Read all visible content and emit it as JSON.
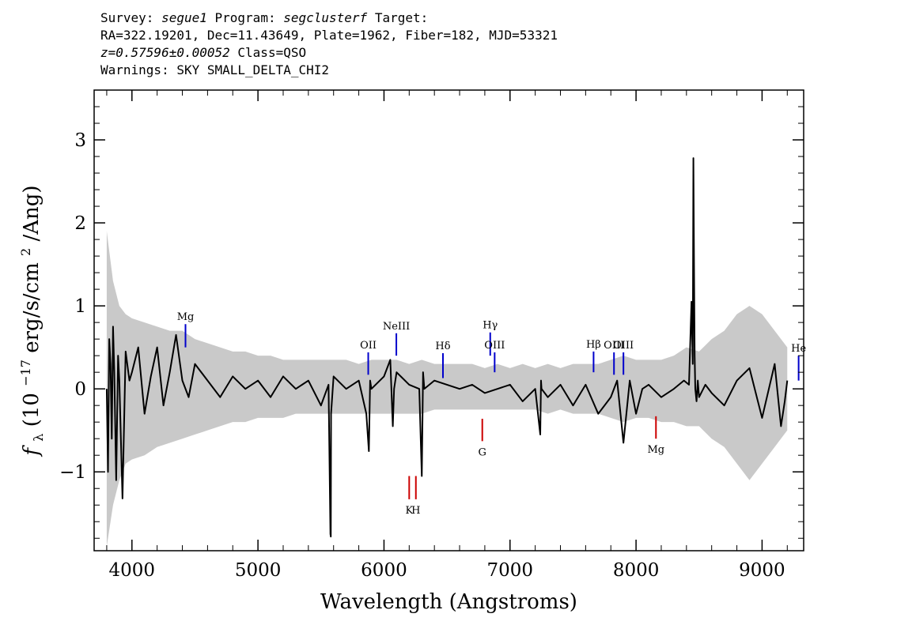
{
  "header": {
    "line1": {
      "survey_label": "Survey:",
      "survey": "segue1",
      "program_label": "Program:",
      "program": "segclusterf",
      "target_label": "Target:"
    },
    "line2": "RA=322.19201, Dec=11.43649, Plate=1962, Fiber=182, MJD=53321",
    "line3": {
      "redshift": "z=0.57596±0.00052",
      "class": "Class=QSO"
    },
    "line4": "Warnings: SKY SMALL_DELTA_CHI2"
  },
  "chart_data": {
    "type": "line",
    "xlabel": "Wavelength (Angstroms)",
    "ylabel": {
      "symbol": "f",
      "subscript": "λ",
      "prefix": " (10",
      "exponent": "−17",
      "middle": " erg/s/cm",
      "exponent2": "2",
      "suffix": "/Ang)"
    },
    "xlim": [
      3700,
      9330
    ],
    "ylim": [
      -1.95,
      3.6
    ],
    "x_ticks": [
      4000,
      5000,
      6000,
      7000,
      8000,
      9000
    ],
    "x_tick_labels": [
      "4000",
      "5000",
      "6000",
      "7000",
      "8000",
      "9000"
    ],
    "y_ticks": [
      -1,
      0,
      1,
      2,
      3
    ],
    "y_tick_labels": [
      "−1",
      "0",
      "1",
      "2",
      "3"
    ],
    "series": [
      {
        "role": "flux",
        "color": "#000000",
        "x": [
          3800,
          3810,
          3820,
          3830,
          3840,
          3850,
          3860,
          3875,
          3890,
          3900,
          3925,
          3950,
          3980,
          4000,
          4050,
          4100,
          4150,
          4200,
          4250,
          4300,
          4350,
          4400,
          4450,
          4500,
          4600,
          4700,
          4800,
          4900,
          5000,
          5100,
          5200,
          5300,
          5400,
          5500,
          5560,
          5575,
          5578,
          5580,
          5600,
          5700,
          5800,
          5860,
          5880,
          5890,
          5900,
          6000,
          6050,
          6070,
          6080,
          6100,
          6200,
          6280,
          6300,
          6310,
          6320,
          6400,
          6500,
          6600,
          6700,
          6800,
          6900,
          7000,
          7100,
          7200,
          7240,
          7246,
          7250,
          7300,
          7400,
          7500,
          7600,
          7700,
          7800,
          7850,
          7900,
          7950,
          8000,
          8050,
          8100,
          8200,
          8300,
          8380,
          8420,
          8440,
          8450,
          8455,
          8460,
          8465,
          8470,
          8480,
          8490,
          8500,
          8550,
          8600,
          8700,
          8800,
          8900,
          9000,
          9100,
          9150,
          9180,
          9200
        ],
        "y": [
          0.0,
          -1.0,
          0.6,
          0.3,
          -0.6,
          0.75,
          0.2,
          -1.1,
          0.4,
          0.1,
          -1.32,
          0.45,
          0.1,
          0.2,
          0.5,
          -0.3,
          0.15,
          0.5,
          -0.2,
          0.2,
          0.65,
          0.1,
          -0.1,
          0.3,
          0.1,
          -0.1,
          0.15,
          0.0,
          0.1,
          -0.1,
          0.15,
          0.0,
          0.1,
          -0.2,
          0.05,
          -1.75,
          -1.78,
          -0.3,
          0.15,
          0.0,
          0.1,
          -0.3,
          -0.75,
          0.1,
          0.0,
          0.15,
          0.35,
          -0.45,
          0.0,
          0.2,
          0.05,
          0.0,
          -1.05,
          0.2,
          0.0,
          0.1,
          0.05,
          0.0,
          0.05,
          -0.05,
          0.0,
          0.05,
          -0.15,
          0.0,
          -0.55,
          0.1,
          0.0,
          -0.1,
          0.05,
          -0.2,
          0.05,
          -0.3,
          -0.1,
          0.1,
          -0.65,
          0.1,
          -0.3,
          0.0,
          0.05,
          -0.1,
          0.0,
          0.1,
          0.05,
          1.05,
          0.3,
          2.78,
          1.5,
          0.4,
          0.0,
          -0.15,
          0.1,
          -0.1,
          0.05,
          -0.05,
          -0.2,
          0.1,
          0.25,
          -0.35,
          0.3,
          -0.45,
          -0.15,
          0.1
        ]
      },
      {
        "role": "flux_error_band",
        "color": "#bfbfbf",
        "x": [
          3800,
          3850,
          3900,
          3950,
          4000,
          4100,
          4200,
          4300,
          4400,
          4500,
          4600,
          4700,
          4800,
          4900,
          5000,
          5100,
          5200,
          5300,
          5400,
          5500,
          5600,
          5700,
          5800,
          5900,
          6000,
          6100,
          6200,
          6300,
          6400,
          6500,
          6600,
          6700,
          6800,
          6900,
          7000,
          7100,
          7200,
          7300,
          7400,
          7500,
          7600,
          7700,
          7800,
          7900,
          8000,
          8100,
          8200,
          8300,
          8400,
          8500,
          8600,
          8700,
          8800,
          8900,
          9000,
          9100,
          9200
        ],
        "upper": [
          1.9,
          1.3,
          1.0,
          0.9,
          0.85,
          0.8,
          0.75,
          0.7,
          0.7,
          0.6,
          0.55,
          0.5,
          0.45,
          0.45,
          0.4,
          0.4,
          0.35,
          0.35,
          0.35,
          0.35,
          0.35,
          0.35,
          0.3,
          0.35,
          0.35,
          0.35,
          0.3,
          0.35,
          0.3,
          0.3,
          0.3,
          0.3,
          0.25,
          0.3,
          0.25,
          0.3,
          0.25,
          0.3,
          0.25,
          0.3,
          0.3,
          0.3,
          0.35,
          0.4,
          0.35,
          0.35,
          0.35,
          0.4,
          0.5,
          0.45,
          0.6,
          0.7,
          0.9,
          1.0,
          0.9,
          0.7,
          0.5
        ],
        "lower": [
          -1.9,
          -1.4,
          -1.1,
          -0.9,
          -0.85,
          -0.8,
          -0.7,
          -0.65,
          -0.6,
          -0.55,
          -0.5,
          -0.45,
          -0.4,
          -0.4,
          -0.35,
          -0.35,
          -0.35,
          -0.3,
          -0.3,
          -0.3,
          -0.3,
          -0.3,
          -0.3,
          -0.3,
          -0.3,
          -0.3,
          -0.3,
          -0.3,
          -0.25,
          -0.25,
          -0.25,
          -0.25,
          -0.25,
          -0.25,
          -0.25,
          -0.25,
          -0.25,
          -0.3,
          -0.25,
          -0.3,
          -0.3,
          -0.3,
          -0.35,
          -0.4,
          -0.35,
          -0.35,
          -0.4,
          -0.4,
          -0.45,
          -0.45,
          -0.6,
          -0.7,
          -0.9,
          -1.1,
          -0.9,
          -0.7,
          -0.5
        ]
      }
    ],
    "emission_lines": [
      {
        "label": "Mg",
        "x": 4425,
        "y0": 0.5,
        "y1": 0.78,
        "color": "#0000cc"
      },
      {
        "label": "OII",
        "x": 5875,
        "y0": 0.17,
        "y1": 0.44,
        "color": "#0000cc"
      },
      {
        "label": "NeIII",
        "x": 6098,
        "y0": 0.4,
        "y1": 0.67,
        "color": "#0000cc"
      },
      {
        "label": "Hδ",
        "x": 6468,
        "y0": 0.13,
        "y1": 0.43,
        "color": "#0000cc"
      },
      {
        "label": "Hγ",
        "x": 6843,
        "y0": 0.4,
        "y1": 0.68,
        "color": "#0000cc"
      },
      {
        "label": "OIII",
        "x": 6878,
        "y0": 0.2,
        "y1": 0.44,
        "color": "#0000cc"
      },
      {
        "label": "Hβ",
        "x": 7663,
        "y0": 0.2,
        "y1": 0.45,
        "color": "#0000cc"
      },
      {
        "label": "OIII",
        "x": 7825,
        "y0": 0.17,
        "y1": 0.44,
        "color": "#0000cc"
      },
      {
        "label": "OIII",
        "x": 7900,
        "y0": 0.17,
        "y1": 0.44,
        "color": "#0000cc"
      },
      {
        "label": "He",
        "x": 9290,
        "y0": 0.1,
        "y1": 0.4,
        "color": "#0000cc"
      }
    ],
    "absorption_lines": [
      {
        "label": "K",
        "x": 6200,
        "y0": -1.05,
        "y1": -1.33,
        "color": "#cc0000"
      },
      {
        "label": "H",
        "x": 6253,
        "y0": -1.05,
        "y1": -1.33,
        "color": "#cc0000"
      },
      {
        "label": "G",
        "x": 6780,
        "y0": -0.36,
        "y1": -0.63,
        "color": "#cc0000"
      },
      {
        "label": "Mg",
        "x": 8158,
        "y0": -0.33,
        "y1": -0.6,
        "color": "#cc0000"
      }
    ]
  }
}
